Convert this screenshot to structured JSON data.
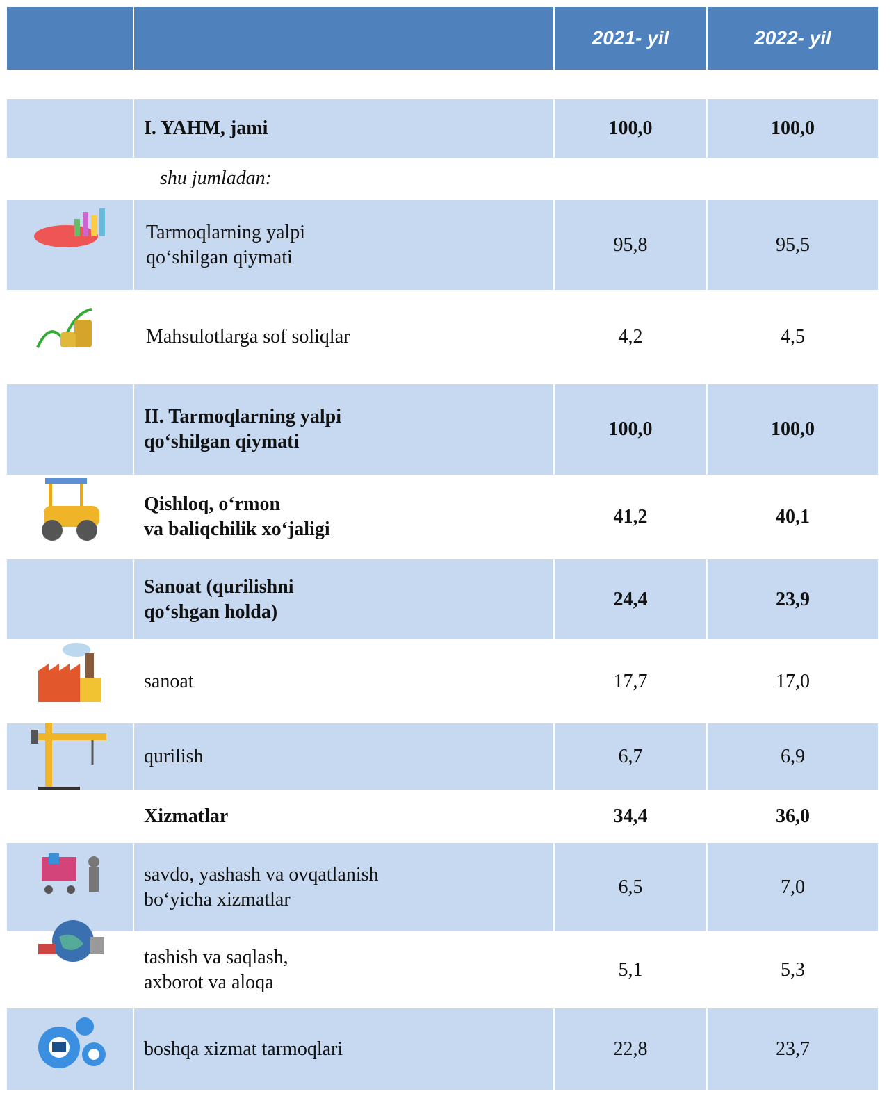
{
  "table": {
    "header": {
      "col1": "2021- yil",
      "col2": "2022- yil"
    },
    "rows": [
      {
        "label": [
          "I. YAHM, jami"
        ],
        "v2021": "100,0",
        "v2022": "100,0",
        "bold": true
      },
      {
        "label": [
          "shu jumladan:"
        ],
        "italic": true
      },
      {
        "label": [
          "Tarmoqlarning yalpi",
          "qo‘shilgan qiymati"
        ],
        "v2021": "95,8",
        "v2022": "95,5"
      },
      {
        "label": [
          "Mahsulotlarga sof soliqlar"
        ],
        "v2021": "4,2",
        "v2022": "4,5"
      },
      {
        "label": [
          "II. Tarmoqlarning yalpi",
          "qo‘shilgan qiymati"
        ],
        "v2021": "100,0",
        "v2022": "100,0",
        "bold": true
      },
      {
        "label": [
          "Qishloq, o‘rmon",
          "va baliqchilik xo‘jaligi"
        ],
        "v2021": "41,2",
        "v2022": "40,1",
        "bold": true
      },
      {
        "label": [
          "Sanoat (qurilishni",
          "qo‘shgan holda)"
        ],
        "v2021": "24,4",
        "v2022": "23,9",
        "bold": true
      },
      {
        "label": [
          "sanoat"
        ],
        "v2021": "17,7",
        "v2022": "17,0"
      },
      {
        "label": [
          "qurilish"
        ],
        "v2021": "6,7",
        "v2022": "6,9"
      },
      {
        "label": [
          "Xizmatlar"
        ],
        "v2021": "34,4",
        "v2022": "36,0",
        "bold": true
      },
      {
        "label": [
          "savdo, yashash va ovqatlanish",
          "bo‘yicha xizmatlar"
        ],
        "v2021": "6,5",
        "v2022": "7,0"
      },
      {
        "label": [
          "tashish va saqlash,",
          "axborot va aloqa"
        ],
        "v2021": "5,1",
        "v2022": "5,3"
      },
      {
        "label": [
          "boshqa xizmat tarmoqlari"
        ],
        "v2021": "22,8",
        "v2022": "23,7"
      }
    ]
  }
}
